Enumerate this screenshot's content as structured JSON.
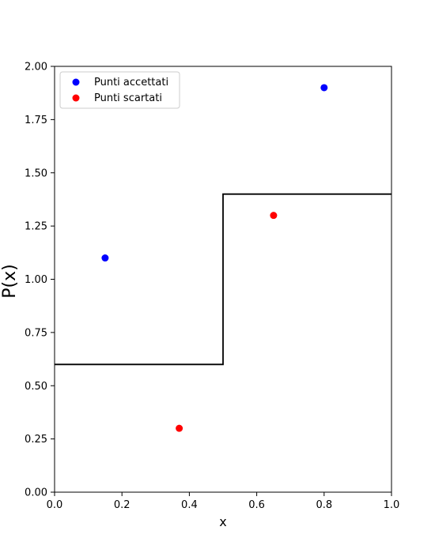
{
  "chart_data": {
    "type": "scatter",
    "xlabel": "x",
    "ylabel": "P(x)",
    "xlim": [
      0.0,
      1.0
    ],
    "ylim": [
      0.0,
      2.0
    ],
    "xticks": [
      "0.0",
      "0.2",
      "0.4",
      "0.6",
      "0.8",
      "1.0"
    ],
    "yticks": [
      "0.00",
      "0.25",
      "0.50",
      "0.75",
      "1.00",
      "1.25",
      "1.50",
      "1.75",
      "2.00"
    ],
    "grid": false,
    "legend_position": "top-left",
    "envelope": {
      "type": "step",
      "color": "#000000",
      "points": [
        [
          0.0,
          0.6
        ],
        [
          0.5,
          0.6
        ],
        [
          0.5,
          1.4
        ],
        [
          1.0,
          1.4
        ]
      ]
    },
    "series": [
      {
        "name": "Punti accettati",
        "color": "#0000ff",
        "points": [
          [
            0.15,
            1.1
          ],
          [
            0.8,
            1.9
          ]
        ]
      },
      {
        "name": "Punti scartati",
        "color": "#ff0000",
        "points": [
          [
            0.37,
            0.3
          ],
          [
            0.65,
            1.3
          ]
        ]
      }
    ]
  }
}
